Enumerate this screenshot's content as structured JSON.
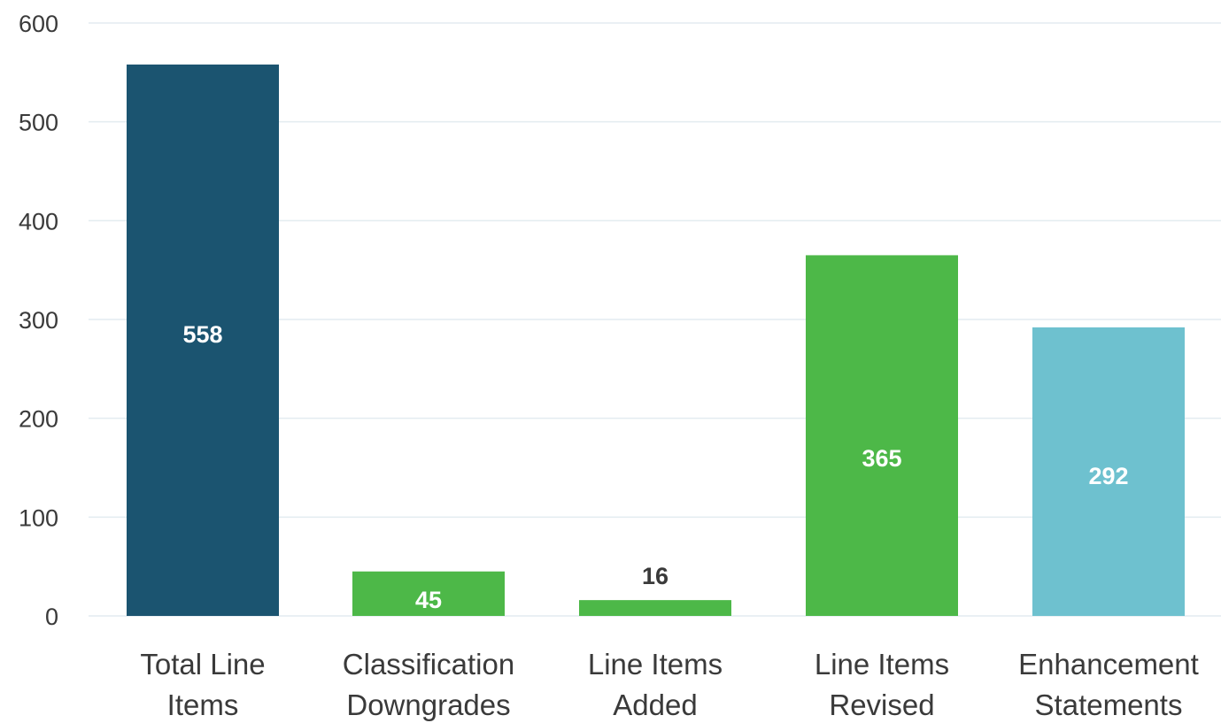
{
  "chart_data": {
    "type": "bar",
    "title": "",
    "xlabel": "",
    "ylabel": "",
    "ylim": [
      0,
      600
    ],
    "yticks": [
      0,
      100,
      200,
      300,
      400,
      500,
      600
    ],
    "grid": true,
    "categories": [
      [
        "Total Line",
        "Items"
      ],
      [
        "Classification",
        "Downgrades"
      ],
      [
        "Line Items",
        "Added"
      ],
      [
        "Line Items",
        "Revised"
      ],
      [
        "Enhancement",
        "Statements"
      ]
    ],
    "values": [
      558,
      45,
      16,
      365,
      292
    ],
    "data_labels": [
      "558",
      "45",
      "16",
      "365",
      "292"
    ],
    "colors": [
      "#1b5470",
      "#4db848",
      "#4db848",
      "#4db848",
      "#6ec1cf"
    ],
    "label_colors": [
      "#ffffff",
      "#ffffff",
      "#3a3a3a",
      "#ffffff",
      "#ffffff"
    ]
  }
}
